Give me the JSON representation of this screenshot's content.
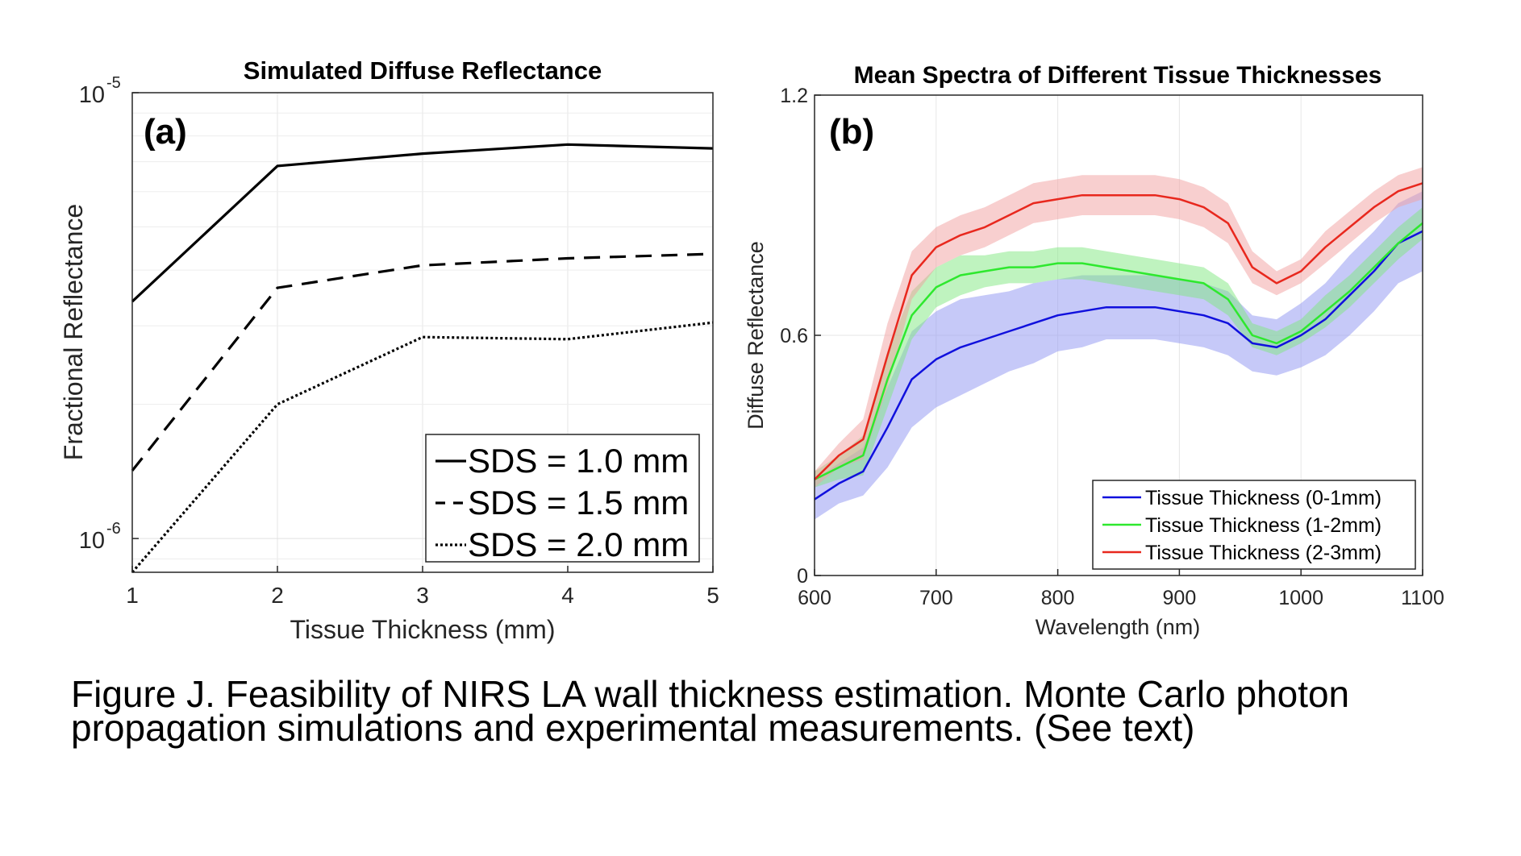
{
  "chart_data": [
    {
      "type": "line",
      "panel_label": "(a)",
      "title": "Simulated Diffuse Reflectance",
      "xlabel": "Tissue Thickness (mm)",
      "ylabel": "Fractional Reflectance",
      "x_ticks": [
        1,
        2,
        3,
        4,
        5
      ],
      "y_scale": "log",
      "ylim": [
        8.4e-07,
        1e-05
      ],
      "y_tick_labels": [
        {
          "value": 1e-05,
          "base": "10",
          "exponent": "-5"
        },
        {
          "value": 1e-06,
          "base": "10",
          "exponent": "-6"
        }
      ],
      "grid": true,
      "legend_position": "bottom-right",
      "x": [
        1,
        2,
        3,
        4,
        5
      ],
      "series": [
        {
          "name": "SDS = 1.0 mm",
          "style": "solid",
          "values": [
            3.4e-06,
            6.85e-06,
            7.3e-06,
            7.65e-06,
            7.5e-06
          ]
        },
        {
          "name": "SDS = 1.5 mm",
          "style": "dashed",
          "values": [
            1.42e-06,
            3.65e-06,
            4.1e-06,
            4.25e-06,
            4.35e-06
          ]
        },
        {
          "name": "SDS = 2.0 mm",
          "style": "dotted",
          "values": [
            8.4e-07,
            2e-06,
            2.83e-06,
            2.8e-06,
            3.05e-06
          ]
        }
      ]
    },
    {
      "type": "line",
      "panel_label": "(b)",
      "title": "Mean Spectra of Different Tissue Thicknesses",
      "xlabel": "Wavelength (nm)",
      "ylabel": "Diffuse Reflectance",
      "x_ticks": [
        600,
        700,
        800,
        900,
        1000,
        1100
      ],
      "y_ticks": [
        0,
        0.6,
        1.2
      ],
      "xlim": [
        600,
        1100
      ],
      "ylim": [
        0,
        1.2
      ],
      "grid": true,
      "legend_position": "bottom-right",
      "x": [
        600,
        620,
        640,
        660,
        680,
        700,
        720,
        740,
        760,
        780,
        800,
        820,
        840,
        860,
        880,
        900,
        920,
        940,
        960,
        980,
        1000,
        1020,
        1040,
        1060,
        1080,
        1100
      ],
      "series": [
        {
          "name": "Tissue Thickness (0-1mm)",
          "color": "#1010dd",
          "band_color": "#8e94f2",
          "values": [
            0.19,
            0.23,
            0.26,
            0.37,
            0.49,
            0.54,
            0.57,
            0.59,
            0.61,
            0.63,
            0.65,
            0.66,
            0.67,
            0.67,
            0.67,
            0.66,
            0.65,
            0.63,
            0.58,
            0.57,
            0.6,
            0.64,
            0.7,
            0.76,
            0.83,
            0.86
          ],
          "spread": [
            0.05,
            0.05,
            0.06,
            0.1,
            0.12,
            0.12,
            0.12,
            0.11,
            0.1,
            0.1,
            0.09,
            0.09,
            0.08,
            0.08,
            0.08,
            0.08,
            0.08,
            0.08,
            0.07,
            0.07,
            0.08,
            0.09,
            0.1,
            0.1,
            0.1,
            0.1
          ]
        },
        {
          "name": "Tissue Thickness (1-2mm)",
          "color": "#2ee82e",
          "band_color": "#7fe87f",
          "values": [
            0.24,
            0.27,
            0.3,
            0.49,
            0.65,
            0.72,
            0.75,
            0.76,
            0.77,
            0.77,
            0.78,
            0.78,
            0.77,
            0.76,
            0.75,
            0.74,
            0.73,
            0.69,
            0.6,
            0.58,
            0.61,
            0.66,
            0.71,
            0.77,
            0.83,
            0.88
          ],
          "spread": [
            0.02,
            0.03,
            0.05,
            0.07,
            0.06,
            0.05,
            0.05,
            0.04,
            0.04,
            0.04,
            0.04,
            0.04,
            0.04,
            0.04,
            0.04,
            0.04,
            0.04,
            0.04,
            0.03,
            0.03,
            0.03,
            0.04,
            0.04,
            0.04,
            0.04,
            0.04
          ]
        },
        {
          "name": "Tissue Thickness (2-3mm)",
          "color": "#e8281e",
          "band_color": "#f2a0a0",
          "values": [
            0.24,
            0.3,
            0.34,
            0.55,
            0.75,
            0.82,
            0.85,
            0.87,
            0.9,
            0.93,
            0.94,
            0.95,
            0.95,
            0.95,
            0.95,
            0.94,
            0.92,
            0.88,
            0.77,
            0.73,
            0.76,
            0.82,
            0.87,
            0.92,
            0.96,
            0.98
          ],
          "spread": [
            0.02,
            0.03,
            0.05,
            0.08,
            0.06,
            0.05,
            0.05,
            0.05,
            0.05,
            0.05,
            0.05,
            0.05,
            0.05,
            0.05,
            0.05,
            0.05,
            0.05,
            0.05,
            0.04,
            0.03,
            0.03,
            0.04,
            0.04,
            0.04,
            0.04,
            0.04
          ]
        }
      ]
    }
  ],
  "caption": {
    "line1": "Figure J. Feasibility of NIRS LA wall thickness estimation. Monte Carlo photon",
    "line2": "propagation simulations and experimental measurements. (See text)"
  }
}
